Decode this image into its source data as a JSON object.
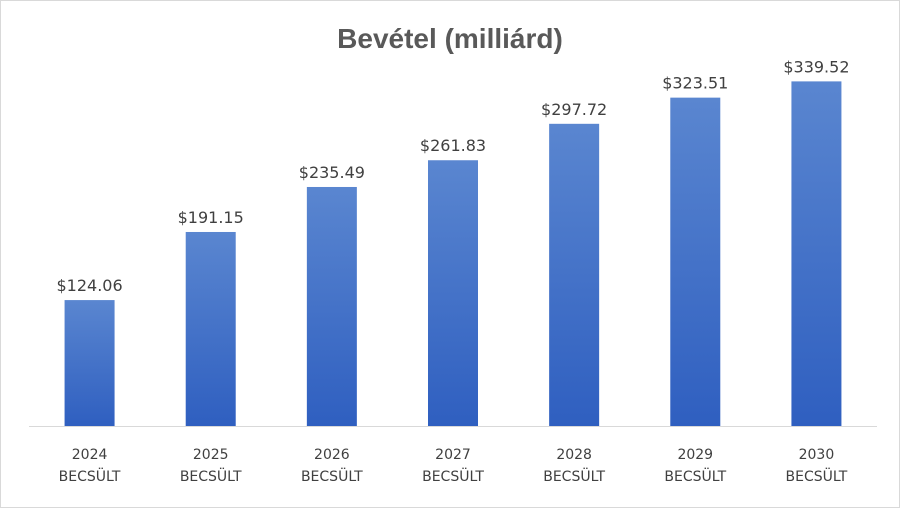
{
  "chart_data": {
    "type": "bar",
    "title": "Bevétel (milliárd)",
    "categories": [
      [
        "2024",
        "BECSÜLT"
      ],
      [
        "2025",
        "BECSÜLT"
      ],
      [
        "2026",
        "BECSÜLT"
      ],
      [
        "2027",
        "BECSÜLT"
      ],
      [
        "2028",
        "BECSÜLT"
      ],
      [
        "2029",
        "BECSÜLT"
      ],
      [
        "2030",
        "BECSÜLT"
      ]
    ],
    "values": [
      124.06,
      191.15,
      235.49,
      261.83,
      297.72,
      323.51,
      339.52
    ],
    "value_labels": [
      "$124.06",
      "$191.15",
      "$235.49",
      "$261.83",
      "$297.72",
      "$323.51",
      "$339.52"
    ],
    "ylim": [
      0,
      400
    ],
    "grid": false,
    "legend": "none",
    "colors": {
      "bar_top": "#5a86d0",
      "bar_bottom": "#2f5fc0",
      "axis": "#d9d9d9"
    }
  }
}
